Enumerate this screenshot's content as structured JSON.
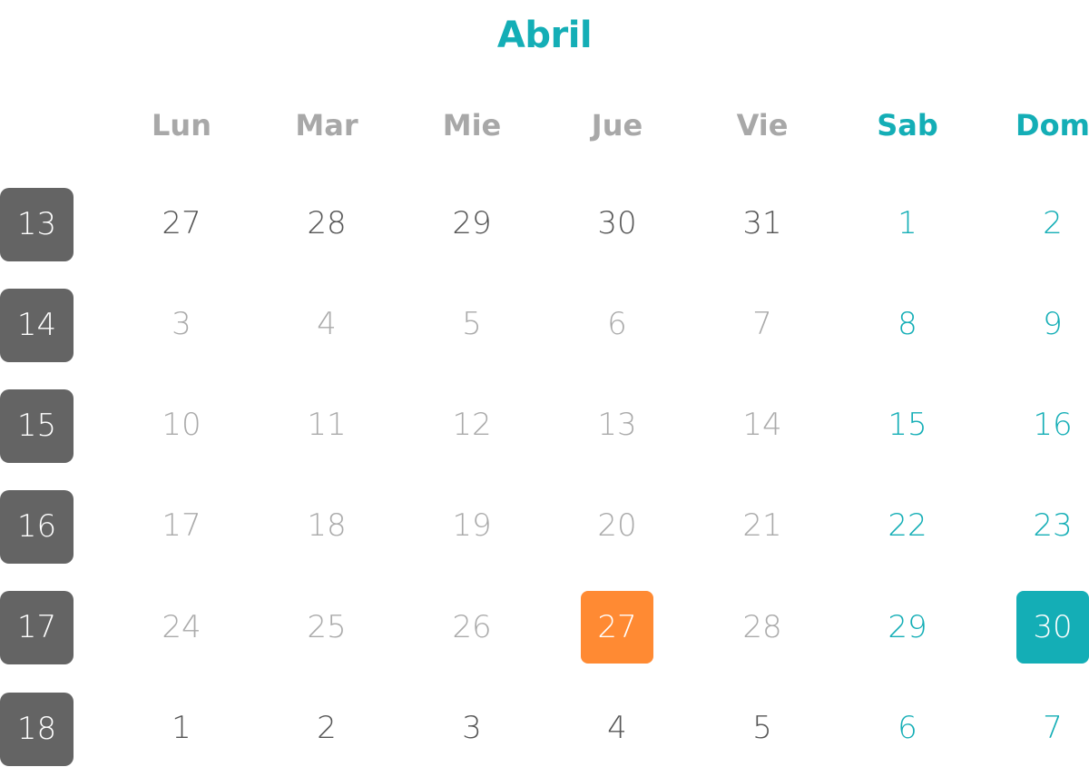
{
  "month": {
    "title": "Abril"
  },
  "weekdays": [
    "Lun",
    "Mar",
    "Mie",
    "Jue",
    "Vie",
    "Sab",
    "Dom"
  ],
  "weeks": [
    {
      "number": "13",
      "days": [
        "27",
        "28",
        "29",
        "30",
        "31",
        "1",
        "2"
      ]
    },
    {
      "number": "14",
      "days": [
        "3",
        "4",
        "5",
        "6",
        "7",
        "8",
        "9"
      ]
    },
    {
      "number": "15",
      "days": [
        "10",
        "11",
        "12",
        "13",
        "14",
        "15",
        "16"
      ]
    },
    {
      "number": "16",
      "days": [
        "17",
        "18",
        "19",
        "20",
        "21",
        "22",
        "23"
      ]
    },
    {
      "number": "17",
      "days": [
        "24",
        "25",
        "26",
        "27",
        "28",
        "29",
        "30"
      ]
    },
    {
      "number": "18",
      "days": [
        "1",
        "2",
        "3",
        "4",
        "5",
        "6",
        "7"
      ]
    }
  ],
  "colors": {
    "accent": "#14aeb6",
    "today": "#ff8a33",
    "week_badge": "#646464",
    "muted_day": "#aaaaaa",
    "other_month_day": "#555555"
  }
}
